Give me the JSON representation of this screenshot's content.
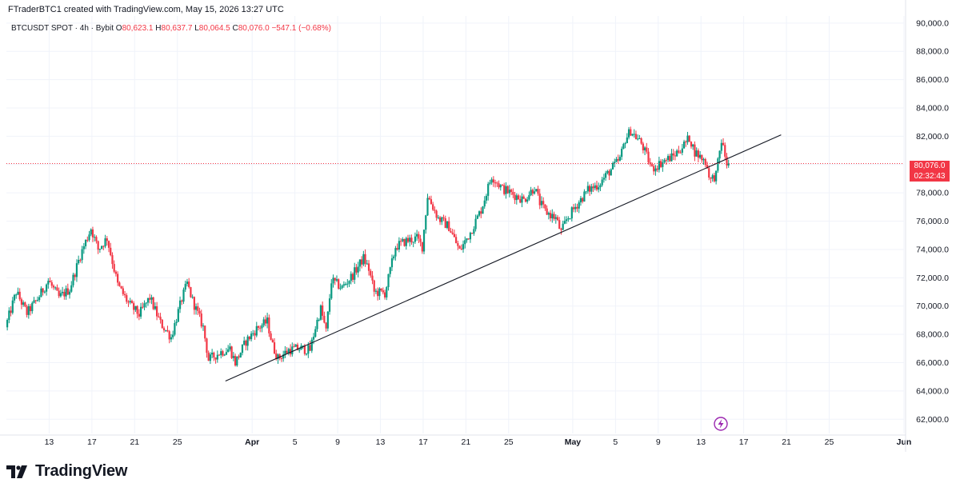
{
  "header": {
    "created_text": "FTraderBTC1 created with TradingView.com, May 15, 2026 13:27 UTC"
  },
  "legend": {
    "symbol": "BTCUSDT SPOT · 4h · Bybit",
    "open_label": "O",
    "open": "80,623.1",
    "high_label": "H",
    "high": "80,637.7",
    "low_label": "L",
    "low": "80,064.5",
    "close_label": "C",
    "close": "80,076.0",
    "change": "−547.1 (−0.68%)"
  },
  "price_tag": {
    "price": "80,076.0",
    "countdown": "02:32:43"
  },
  "brand": {
    "name": "TradingView",
    "logo_icon": "tradingview-logo-icon"
  },
  "colors": {
    "up": "#089981",
    "down": "#f23645",
    "trendline": "#131722",
    "grid": "#f0f3fa",
    "lightning": "#9c27b0"
  },
  "chart_data": {
    "type": "candlestick",
    "interval": "4h",
    "y_axis": {
      "range": [
        61000,
        90500
      ],
      "ticks": [
        90000,
        88000,
        86000,
        84000,
        82000,
        80000,
        78000,
        76000,
        74000,
        72000,
        70000,
        68000,
        66000,
        64000,
        62000
      ],
      "tick_labels": [
        "90,000.0",
        "88,000.0",
        "86,000.0",
        "84,000.0",
        "82,000.0",
        "80,000.0",
        "78,000.0",
        "76,000.0",
        "74,000.0",
        "72,000.0",
        "70,000.0",
        "68,000.0",
        "66,000.0",
        "64,000.0",
        "62,000.0"
      ]
    },
    "x_axis": {
      "range_days": [
        "2026-03-09",
        "2026-06-01"
      ],
      "ticks": [
        {
          "date": "2026-03-13",
          "label": "13"
        },
        {
          "date": "2026-03-17",
          "label": "17"
        },
        {
          "date": "2026-03-21",
          "label": "21"
        },
        {
          "date": "2026-03-25",
          "label": "25"
        },
        {
          "date": "2026-04-01",
          "label": "Apr",
          "bold": true
        },
        {
          "date": "2026-04-05",
          "label": "5"
        },
        {
          "date": "2026-04-09",
          "label": "9"
        },
        {
          "date": "2026-04-13",
          "label": "13"
        },
        {
          "date": "2026-04-17",
          "label": "17"
        },
        {
          "date": "2026-04-21",
          "label": "21"
        },
        {
          "date": "2026-04-25",
          "label": "25"
        },
        {
          "date": "2026-05-01",
          "label": "May",
          "bold": true
        },
        {
          "date": "2026-05-05",
          "label": "5"
        },
        {
          "date": "2026-05-09",
          "label": "9"
        },
        {
          "date": "2026-05-13",
          "label": "13"
        },
        {
          "date": "2026-05-17",
          "label": "17"
        },
        {
          "date": "2026-05-21",
          "label": "21"
        },
        {
          "date": "2026-05-25",
          "label": "25"
        },
        {
          "date": "2026-06-01",
          "label": "Jun",
          "bold": true
        }
      ]
    },
    "last_price": 80076.0,
    "trendline": {
      "start": {
        "date": "2026-03-29T12:00",
        "price": 64700
      },
      "end": {
        "date": "2026-05-20T12:00",
        "price": 82100
      }
    },
    "price_path": [
      [
        "2026-03-09T00:00",
        68500
      ],
      [
        "2026-03-10T00:00",
        71000
      ],
      [
        "2026-03-11T00:00",
        69500
      ],
      [
        "2026-03-12T00:00",
        70500
      ],
      [
        "2026-03-13T00:00",
        71800
      ],
      [
        "2026-03-14T00:00",
        70600
      ],
      [
        "2026-03-15T00:00",
        71200
      ],
      [
        "2026-03-16T00:00",
        73600
      ],
      [
        "2026-03-17T00:00",
        75500
      ],
      [
        "2026-03-17T16:00",
        74000
      ],
      [
        "2026-03-18T12:00",
        74800
      ],
      [
        "2026-03-19T12:00",
        71500
      ],
      [
        "2026-03-20T12:00",
        70200
      ],
      [
        "2026-03-21T12:00",
        69400
      ],
      [
        "2026-03-22T12:00",
        70600
      ],
      [
        "2026-03-23T12:00",
        68800
      ],
      [
        "2026-03-24T12:00",
        67800
      ],
      [
        "2026-03-25T12:00",
        70500
      ],
      [
        "2026-03-26T00:00",
        71600
      ],
      [
        "2026-03-26T12:00",
        70400
      ],
      [
        "2026-03-27T12:00",
        68500
      ],
      [
        "2026-03-28T00:00",
        66200
      ],
      [
        "2026-03-29T00:00",
        66700
      ],
      [
        "2026-03-30T00:00",
        67000
      ],
      [
        "2026-03-30T12:00",
        66000
      ],
      [
        "2026-03-31T12:00",
        67500
      ],
      [
        "2026-04-01T12:00",
        68400
      ],
      [
        "2026-04-02T12:00",
        68900
      ],
      [
        "2026-04-03T00:00",
        67200
      ],
      [
        "2026-04-03T12:00",
        66300
      ],
      [
        "2026-04-04T12:00",
        66900
      ],
      [
        "2026-04-05T12:00",
        67000
      ],
      [
        "2026-04-06T12:00",
        66900
      ],
      [
        "2026-04-07T00:00",
        68500
      ],
      [
        "2026-04-07T12:00",
        69800
      ],
      [
        "2026-04-08T00:00",
        68200
      ],
      [
        "2026-04-08T12:00",
        71800
      ],
      [
        "2026-04-09T12:00",
        71300
      ],
      [
        "2026-04-10T12:00",
        72200
      ],
      [
        "2026-04-11T12:00",
        73400
      ],
      [
        "2026-04-12T00:00",
        72600
      ],
      [
        "2026-04-12T12:00",
        71000
      ],
      [
        "2026-04-13T12:00",
        70900
      ],
      [
        "2026-04-14T00:00",
        72500
      ],
      [
        "2026-04-14T12:00",
        74200
      ],
      [
        "2026-04-15T12:00",
        74600
      ],
      [
        "2026-04-16T12:00",
        74800
      ],
      [
        "2026-04-17T00:00",
        74200
      ],
      [
        "2026-04-17T12:00",
        77800
      ],
      [
        "2026-04-18T12:00",
        76200
      ],
      [
        "2026-04-19T12:00",
        75600
      ],
      [
        "2026-04-20T12:00",
        73900
      ],
      [
        "2026-04-21T12:00",
        75200
      ],
      [
        "2026-04-22T12:00",
        76800
      ],
      [
        "2026-04-23T12:00",
        79200
      ],
      [
        "2026-04-24T12:00",
        78300
      ],
      [
        "2026-04-25T12:00",
        77900
      ],
      [
        "2026-04-26T12:00",
        77500
      ],
      [
        "2026-04-27T12:00",
        78400
      ],
      [
        "2026-04-28T00:00",
        77300
      ],
      [
        "2026-04-28T12:00",
        76700
      ],
      [
        "2026-04-29T12:00",
        76200
      ],
      [
        "2026-04-30T00:00",
        75200
      ],
      [
        "2026-04-30T12:00",
        76100
      ],
      [
        "2026-05-01T12:00",
        77200
      ],
      [
        "2026-05-02T12:00",
        78200
      ],
      [
        "2026-05-03T12:00",
        78600
      ],
      [
        "2026-05-04T12:00",
        79500
      ],
      [
        "2026-05-05T12:00",
        80400
      ],
      [
        "2026-05-06T00:00",
        81800
      ],
      [
        "2026-05-06T12:00",
        82400
      ],
      [
        "2026-05-07T12:00",
        81500
      ],
      [
        "2026-05-08T12:00",
        79700
      ],
      [
        "2026-05-09T12:00",
        80200
      ],
      [
        "2026-05-10T12:00",
        80600
      ],
      [
        "2026-05-11T12:00",
        81400
      ],
      [
        "2026-05-12T00:00",
        81900
      ],
      [
        "2026-05-12T12:00",
        80900
      ],
      [
        "2026-05-13T12:00",
        80200
      ],
      [
        "2026-05-14T00:00",
        78900
      ],
      [
        "2026-05-14T12:00",
        79300
      ],
      [
        "2026-05-15T00:00",
        81700
      ],
      [
        "2026-05-15T12:00",
        80076
      ]
    ]
  }
}
